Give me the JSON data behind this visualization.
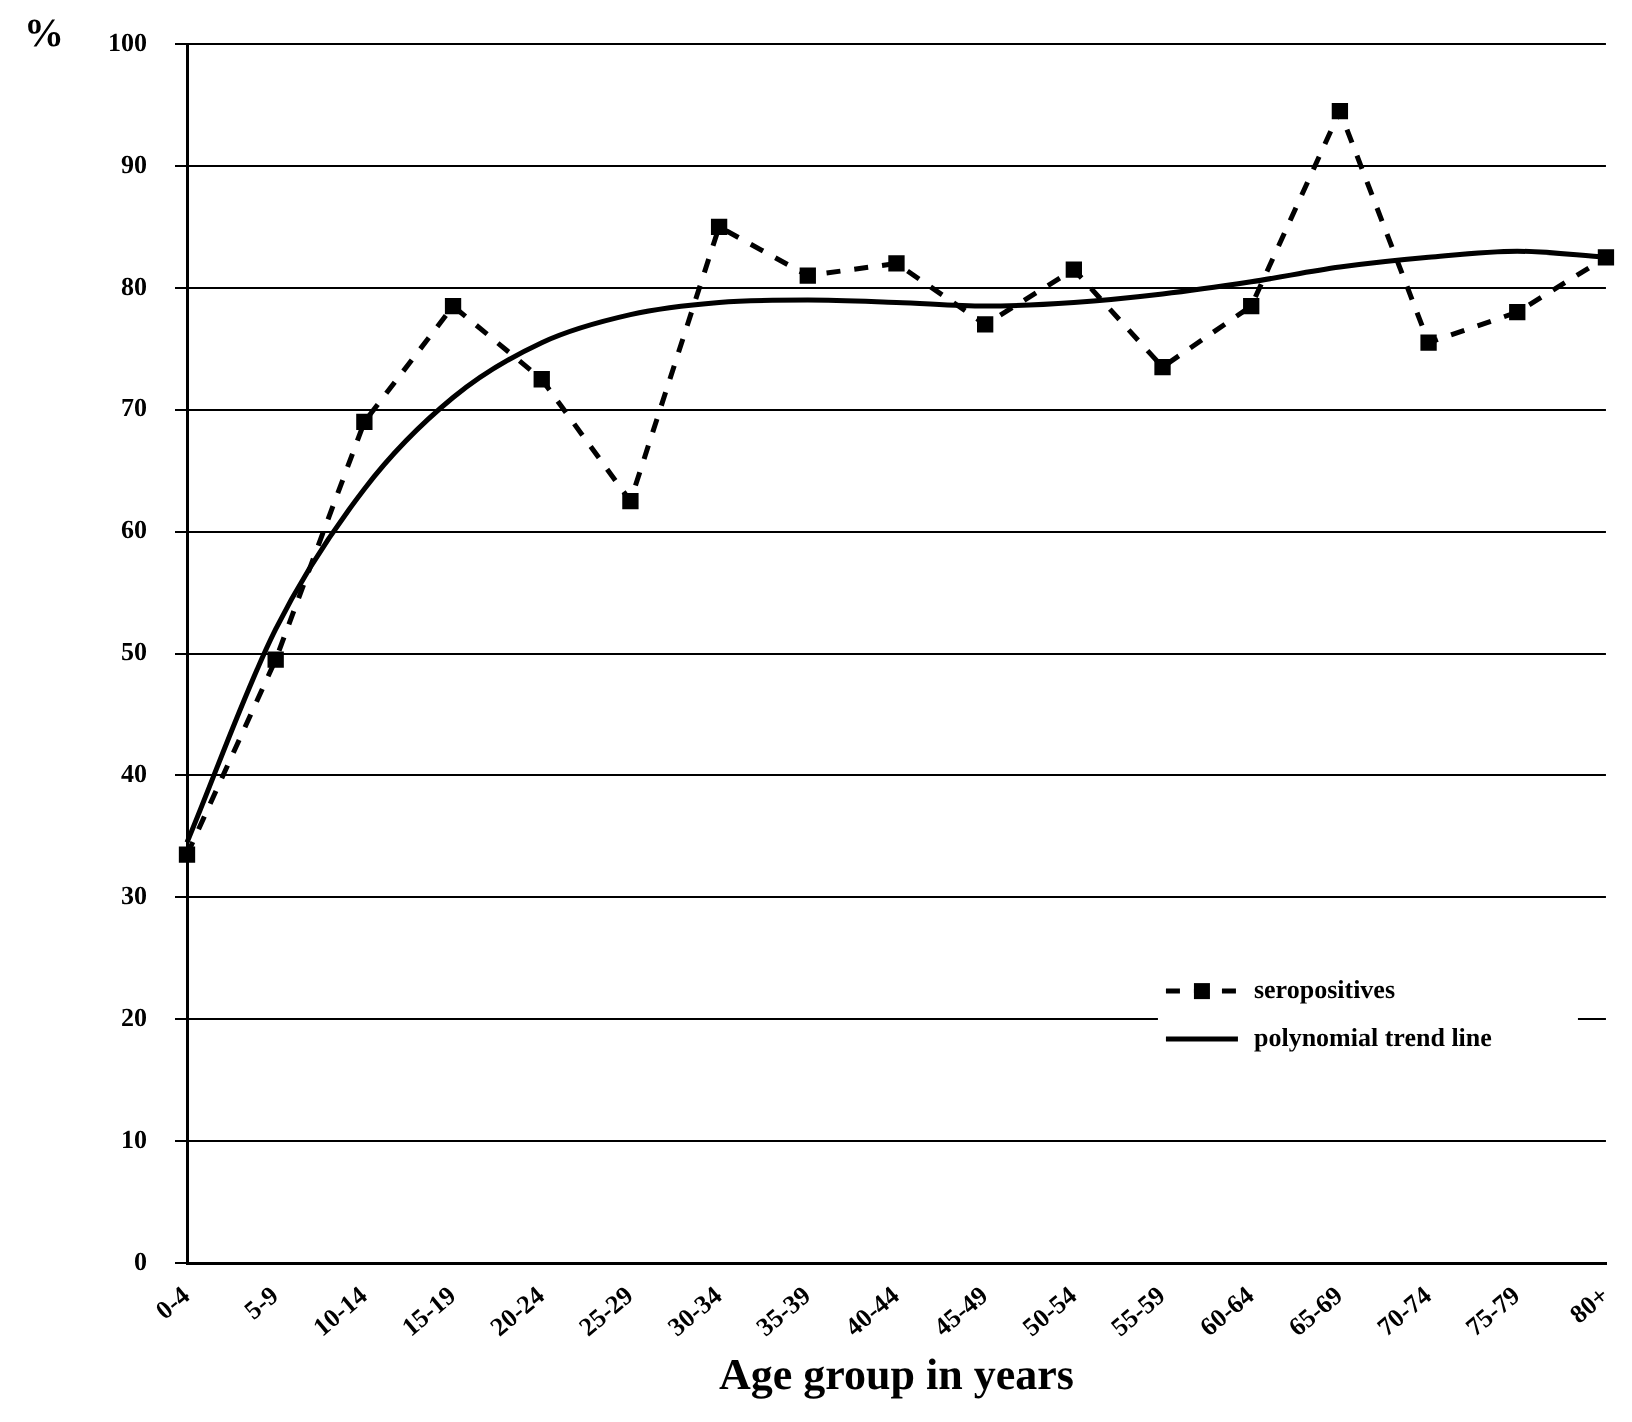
{
  "chart_data": {
    "type": "line",
    "ylabel": "%",
    "xlabel": "Age group in years",
    "categories": [
      "0-4",
      "5-9",
      "10-14",
      "15-19",
      "20-24",
      "25-29",
      "30-34",
      "35-39",
      "40-44",
      "45-49",
      "50-54",
      "55-59",
      "60-64",
      "65-69",
      "70-74",
      "75-79",
      "80+"
    ],
    "series": [
      {
        "name": "seropositives",
        "color": "#000000",
        "marker": "square",
        "line_style": "dashed",
        "values": [
          33.5,
          49.5,
          69,
          78.5,
          72.5,
          62.5,
          85,
          81,
          82,
          77,
          81.5,
          73.5,
          78.5,
          94.5,
          75.5,
          78,
          82.5
        ]
      },
      {
        "name": "polynomial trend line",
        "color": "#000000",
        "marker": "none",
        "line_style": "solid",
        "values": [
          34.5,
          52,
          63.5,
          71,
          75.5,
          77.8,
          78.8,
          79,
          78.8,
          78.5,
          78.8,
          79.5,
          80.5,
          81.7,
          82.5,
          83,
          82.5
        ]
      }
    ],
    "ylim": [
      0,
      100
    ],
    "yticks": [
      0,
      10,
      20,
      30,
      40,
      50,
      60,
      70,
      80,
      90,
      100
    ],
    "grid": "y",
    "legend": "bottom right"
  }
}
